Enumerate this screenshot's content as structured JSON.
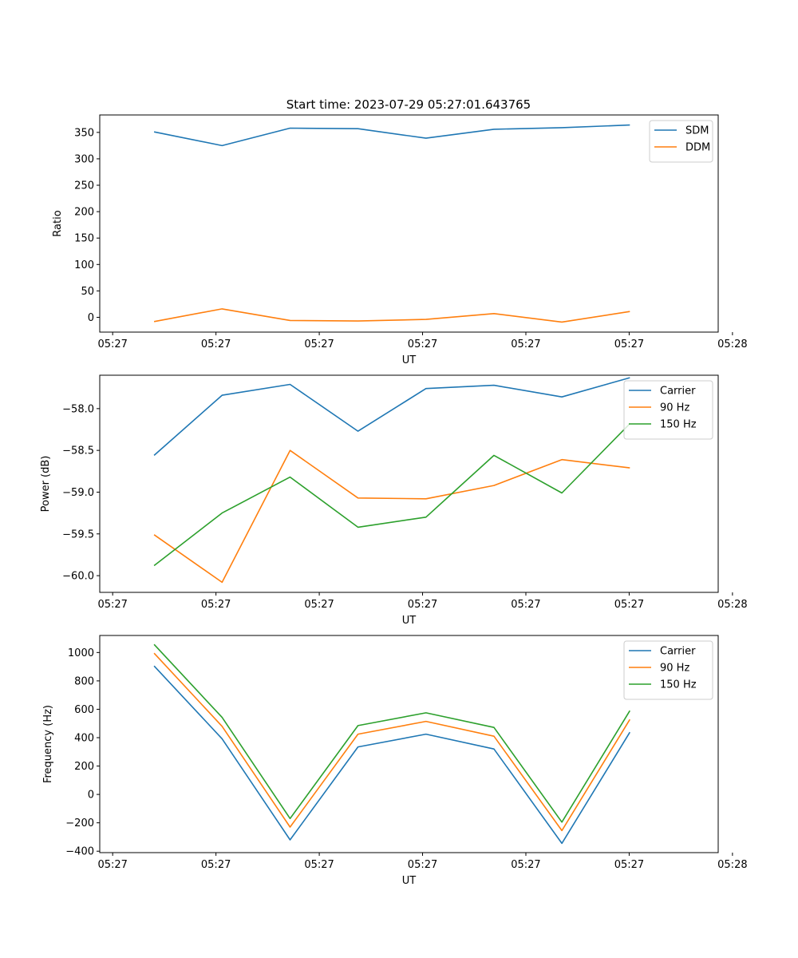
{
  "figure_title": "Start time: 2023-07-29 05:27:01.643765",
  "chart_data": [
    {
      "type": "line",
      "title": "Start time: 2023-07-29 05:27:01.643765",
      "xlabel": "UT",
      "ylabel": "Ratio",
      "x": [
        1,
        2,
        3,
        4,
        5,
        6,
        7,
        8
      ],
      "xlim": [
        0.2,
        9.3
      ],
      "x_ticks": [
        0.39,
        1.91,
        3.43,
        4.95,
        6.47,
        7.99,
        9.51
      ],
      "x_tick_labels": [
        "05:27",
        "05:27",
        "05:27",
        "05:27",
        "05:27",
        "05:27",
        "05:28"
      ],
      "ylim": [
        -28,
        383
      ],
      "y_ticks": [
        0,
        50,
        100,
        150,
        200,
        250,
        300,
        350
      ],
      "y_tick_labels": [
        "0",
        "50",
        "100",
        "150",
        "200",
        "250",
        "300",
        "350"
      ],
      "legend_position": "top-right",
      "series": [
        {
          "name": "SDM",
          "color": "#1f77b4",
          "values": [
            351,
            325,
            358,
            357,
            339,
            356,
            359,
            364
          ]
        },
        {
          "name": "DDM",
          "color": "#ff7f0e",
          "values": [
            -8,
            16,
            -6,
            -7,
            -4,
            7,
            -9,
            11
          ]
        }
      ]
    },
    {
      "type": "line",
      "title": "",
      "xlabel": "UT",
      "ylabel": "Power (dB)",
      "x": [
        1,
        2,
        3,
        4,
        5,
        6,
        7,
        8
      ],
      "xlim": [
        0.2,
        9.3
      ],
      "x_ticks": [
        0.39,
        1.91,
        3.43,
        4.95,
        6.47,
        7.99,
        9.51
      ],
      "x_tick_labels": [
        "05:27",
        "05:27",
        "05:27",
        "05:27",
        "05:27",
        "05:27",
        "05:28"
      ],
      "ylim": [
        -60.2,
        -57.6
      ],
      "y_ticks": [
        -60.0,
        -59.5,
        -59.0,
        -58.5,
        -58.0
      ],
      "y_tick_labels": [
        "−60.0",
        "−59.5",
        "−59.0",
        "−58.5",
        "−58.0"
      ],
      "legend_position": "top-right",
      "series": [
        {
          "name": "Carrier",
          "color": "#1f77b4",
          "values": [
            -58.56,
            -57.84,
            -57.71,
            -58.27,
            -57.76,
            -57.72,
            -57.86,
            -57.63
          ]
        },
        {
          "name": "90 Hz",
          "color": "#ff7f0e",
          "values": [
            -59.51,
            -60.08,
            -58.5,
            -59.07,
            -59.08,
            -58.92,
            -58.61,
            -58.71
          ]
        },
        {
          "name": "150 Hz",
          "color": "#2ca02c",
          "values": [
            -59.88,
            -59.25,
            -58.82,
            -59.42,
            -59.3,
            -58.56,
            -59.01,
            -58.18
          ]
        }
      ]
    },
    {
      "type": "line",
      "title": "",
      "xlabel": "UT",
      "ylabel": "Frequency (Hz)",
      "x": [
        1,
        2,
        3,
        4,
        5,
        6,
        7,
        8
      ],
      "xlim": [
        0.2,
        9.3
      ],
      "x_ticks": [
        0.39,
        1.91,
        3.43,
        4.95,
        6.47,
        7.99,
        9.51
      ],
      "x_tick_labels": [
        "05:27",
        "05:27",
        "05:27",
        "05:27",
        "05:27",
        "05:27",
        "05:28"
      ],
      "ylim": [
        -410,
        1120
      ],
      "y_ticks": [
        -400,
        -200,
        0,
        200,
        400,
        600,
        800,
        1000
      ],
      "y_tick_labels": [
        "−400",
        "−200",
        "0",
        "200",
        "400",
        "600",
        "800",
        "1000"
      ],
      "legend_position": "top-right",
      "series": [
        {
          "name": "Carrier",
          "color": "#1f77b4",
          "values": [
            905,
            392,
            -320,
            335,
            425,
            320,
            -345,
            438
          ]
        },
        {
          "name": "90 Hz",
          "color": "#ff7f0e",
          "values": [
            995,
            480,
            -230,
            425,
            515,
            410,
            -255,
            528
          ]
        },
        {
          "name": "150 Hz",
          "color": "#2ca02c",
          "values": [
            1057,
            543,
            -170,
            485,
            575,
            472,
            -195,
            590
          ]
        }
      ]
    }
  ]
}
